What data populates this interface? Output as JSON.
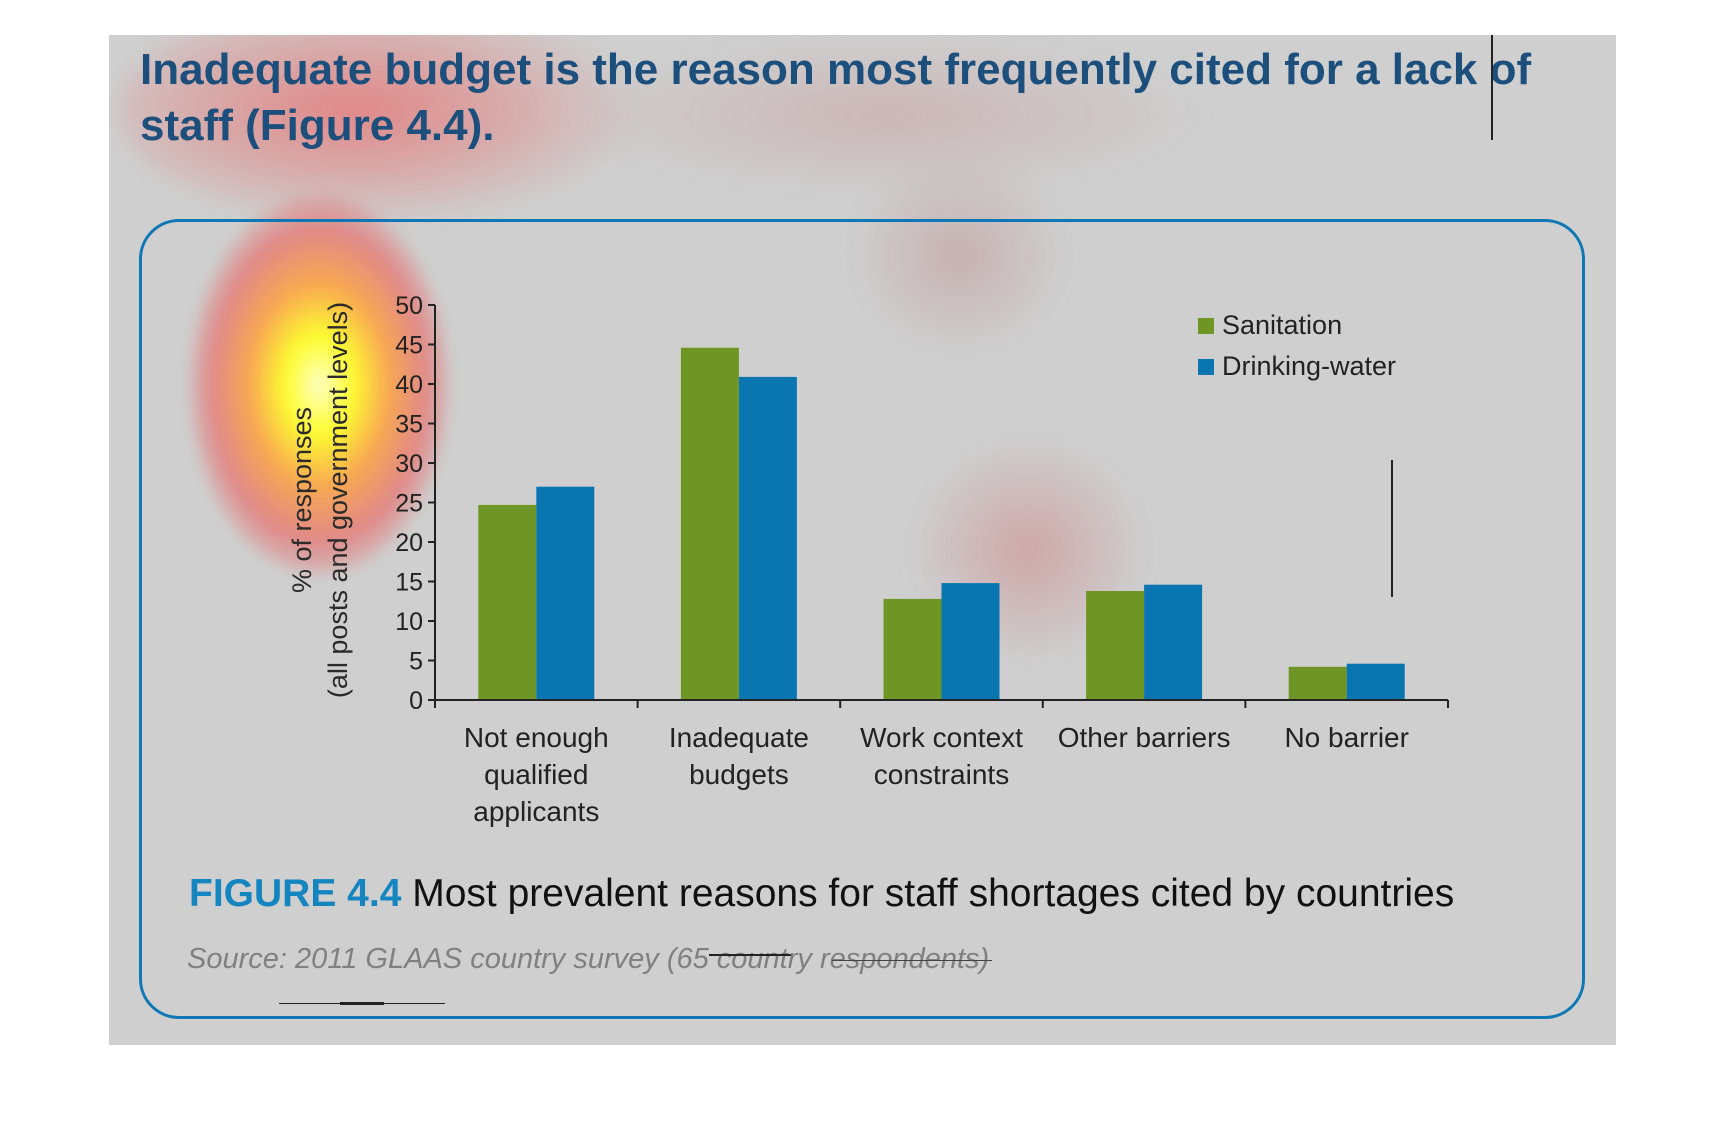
{
  "headline": "Inadequate budget is the reason most frequently cited for a lack of staff (Figure 4.4).",
  "figure": {
    "number": "FIGURE 4.4",
    "title": " Most prevalent reasons for staff shortages cited by countries",
    "source": "Source: 2011 GLAAS country survey (65 country respondents)"
  },
  "colors": {
    "sanitation": "#6f9625",
    "drinking_water": "#0a76b1",
    "accent": "#0f78b4",
    "headline": "#1d4f7c"
  },
  "chart_data": {
    "type": "bar",
    "title": "",
    "xlabel": "",
    "ylabel_lines": [
      "% of responses",
      "(all posts and government levels)"
    ],
    "ylim": [
      0,
      50
    ],
    "yticks": [
      "0",
      "5",
      "10",
      "15",
      "20",
      "25",
      "30",
      "35",
      "40",
      "45",
      "50"
    ],
    "grid": false,
    "legend_position": "top-right",
    "categories": [
      [
        "Not enough",
        "qualified",
        "applicants"
      ],
      [
        "Inadequate",
        "budgets"
      ],
      [
        "Work context",
        "constraints"
      ],
      [
        "Other barriers"
      ],
      [
        "No barrier"
      ]
    ],
    "series": [
      {
        "name": "Sanitation",
        "color": "#6f9625",
        "values": [
          24.7,
          44.6,
          12.8,
          13.8,
          4.2
        ]
      },
      {
        "name": "Drinking-water",
        "color": "#0a76b1",
        "values": [
          27.0,
          40.9,
          14.8,
          14.6,
          4.6
        ]
      }
    ]
  }
}
